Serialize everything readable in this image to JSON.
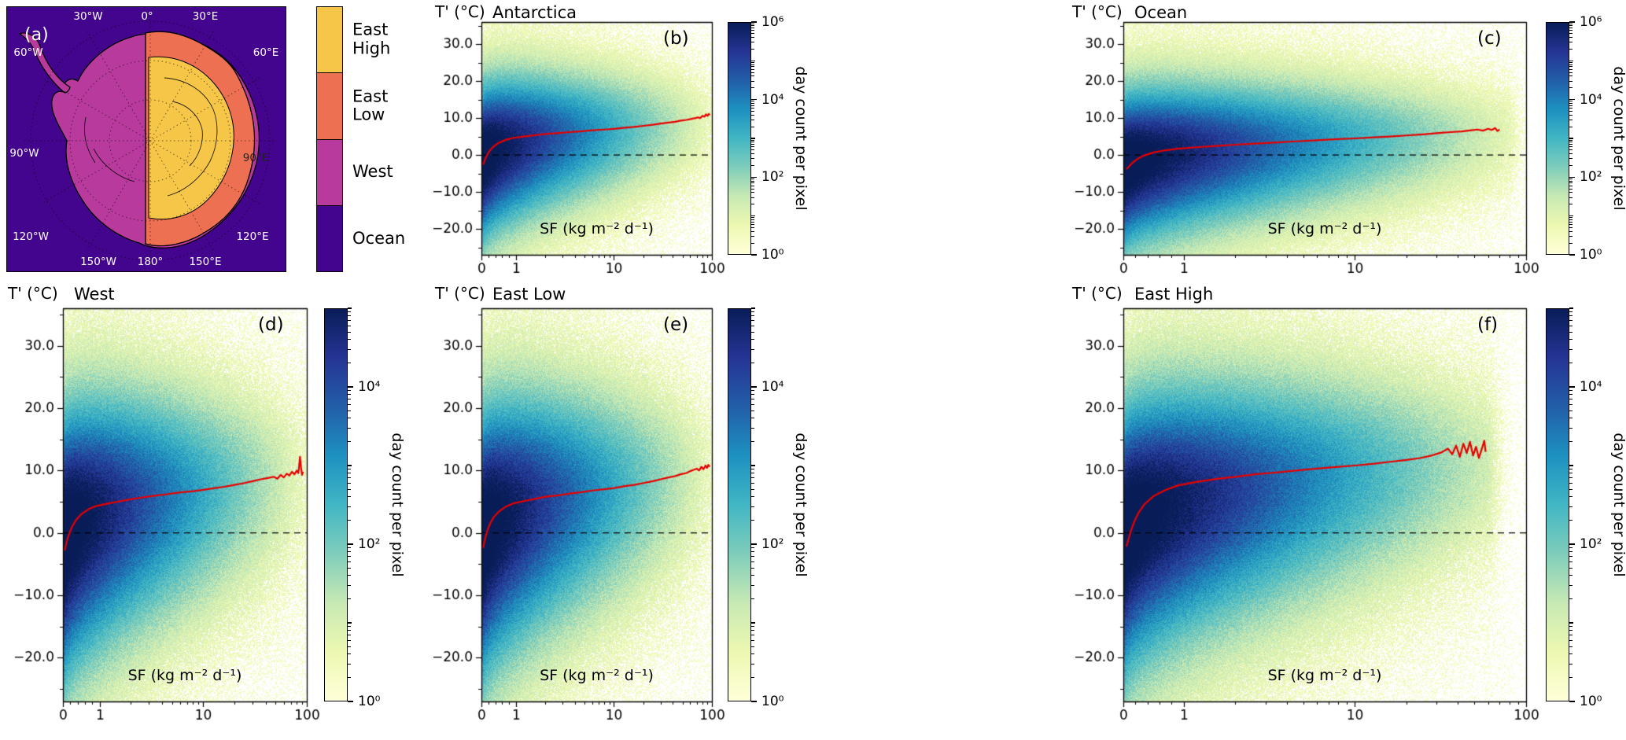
{
  "shared": {
    "y_axis_title": "T' (°C)",
    "x_axis_title": "SF (kg m⁻² d⁻¹)",
    "colorbar_label": "day count per pixel",
    "red_line_color": "#e80000"
  },
  "axes": {
    "x_scale": "symlog",
    "x_linthresh": 1,
    "x_linthresh_frac": 0.15,
    "x_ticks": [
      0,
      1,
      10,
      100
    ],
    "x_tick_labels": [
      "0",
      "1",
      "10",
      "100"
    ],
    "x_minor": [
      0.2,
      0.4,
      0.6,
      0.8,
      2,
      3,
      4,
      5,
      6,
      7,
      8,
      9,
      20,
      30,
      40,
      50,
      60,
      70,
      80,
      90
    ],
    "y_ticks": [
      30,
      20,
      10,
      0,
      -10,
      -20
    ],
    "y_tick_labels": [
      "30.0",
      "20.0",
      "10.0",
      "0.0",
      "−10.0",
      "−20.0"
    ],
    "y_minor": [
      35,
      25,
      15,
      5,
      -5,
      -15,
      -25
    ],
    "ylim": [
      -27,
      36
    ],
    "zero_line_y": 0
  },
  "colormap": [
    [
      0.0,
      "#ffffd9"
    ],
    [
      0.125,
      "#edf8b1"
    ],
    [
      0.25,
      "#c7e9b4"
    ],
    [
      0.375,
      "#7fcdbb"
    ],
    [
      0.5,
      "#41b6c4"
    ],
    [
      0.625,
      "#1d91c0"
    ],
    [
      0.75,
      "#225ea8"
    ],
    [
      0.875,
      "#253494"
    ],
    [
      1.0,
      "#081d58"
    ]
  ],
  "map_panel": {
    "panel_label": "(a)",
    "colors": {
      "ocean": "#43048e",
      "west": "#b83a9c",
      "east_low": "#ee7052",
      "east_high": "#f6c648"
    },
    "legend": [
      {
        "label": "East\n High",
        "color": "#f6c648"
      },
      {
        "label": "East\n Low",
        "color": "#ee7052"
      },
      {
        "label": "West",
        "color": "#b83a9c"
      },
      {
        "label": "Ocean",
        "color": "#43048e"
      }
    ],
    "lon_labels": [
      "0°",
      "30°E",
      "30°W",
      "60°E",
      "60°W",
      "90°E",
      "90°W",
      "120°E",
      "120°W",
      "150°E",
      "150°W",
      "180°"
    ]
  },
  "chart_data": [
    {
      "id": "panel-b",
      "type": "heatmap",
      "panel_label": "(b)",
      "title": "Antarctica",
      "xlabel": "SF (kg m⁻² d⁻¹)",
      "ylabel": "T' (°C)",
      "density": {
        "max_exp": 6,
        "c0": -2.5,
        "c1": 9,
        "s0": 13,
        "s1": 9,
        "extent": 1.0,
        "pow": 0.35
      },
      "colorbar": {
        "max_exp": 6,
        "ticks": [
          [
            "10⁶",
            6
          ],
          [
            "10⁴",
            4
          ],
          [
            "10²",
            2
          ],
          [
            "10⁰",
            0
          ]
        ]
      },
      "red_line": [
        [
          0.05,
          -2.6
        ],
        [
          0.08,
          -1.8
        ],
        [
          0.12,
          -0.8
        ],
        [
          0.18,
          0.3
        ],
        [
          0.25,
          1.3
        ],
        [
          0.35,
          2.3
        ],
        [
          0.5,
          3.3
        ],
        [
          0.7,
          4.1
        ],
        [
          0.9,
          4.6
        ],
        [
          1.2,
          5.0
        ],
        [
          1.6,
          5.4
        ],
        [
          2,
          5.7
        ],
        [
          2.6,
          5.9
        ],
        [
          3.5,
          6.2
        ],
        [
          4.5,
          6.4
        ],
        [
          6,
          6.7
        ],
        [
          8,
          6.9
        ],
        [
          10,
          7.1
        ],
        [
          13,
          7.4
        ],
        [
          16,
          7.6
        ],
        [
          20,
          7.9
        ],
        [
          25,
          8.2
        ],
        [
          30,
          8.5
        ],
        [
          36,
          8.8
        ],
        [
          42,
          9.0
        ],
        [
          48,
          9.3
        ],
        [
          55,
          9.5
        ],
        [
          62,
          9.8
        ],
        [
          68,
          10.0
        ],
        [
          72,
          10.2
        ],
        [
          76,
          10.0
        ],
        [
          80,
          10.6
        ],
        [
          84,
          10.4
        ],
        [
          87,
          11.0
        ],
        [
          90,
          10.6
        ],
        [
          93,
          11.1
        ],
        [
          95,
          10.8
        ]
      ]
    },
    {
      "id": "panel-c",
      "type": "heatmap",
      "panel_label": "(c)",
      "title": "Ocean",
      "xlabel": "SF (kg m⁻² d⁻¹)",
      "ylabel": "T' (°C)",
      "density": {
        "max_exp": 6,
        "c0": -3.5,
        "c1": 6,
        "s0": 13,
        "s1": 9,
        "extent": 0.95,
        "pow": 0.4
      },
      "colorbar": {
        "max_exp": 6,
        "ticks": [
          [
            "10⁶",
            6
          ],
          [
            "10⁴",
            4
          ],
          [
            "10²",
            2
          ],
          [
            "10⁰",
            0
          ]
        ]
      },
      "red_line": [
        [
          0.05,
          -3.8
        ],
        [
          0.08,
          -3.4
        ],
        [
          0.12,
          -2.6
        ],
        [
          0.18,
          -1.7
        ],
        [
          0.25,
          -0.9
        ],
        [
          0.35,
          -0.1
        ],
        [
          0.5,
          0.7
        ],
        [
          0.7,
          1.3
        ],
        [
          0.9,
          1.7
        ],
        [
          1.2,
          2.1
        ],
        [
          1.6,
          2.5
        ],
        [
          2,
          2.8
        ],
        [
          2.6,
          3.1
        ],
        [
          3.5,
          3.4
        ],
        [
          4.5,
          3.7
        ],
        [
          6,
          4.0
        ],
        [
          8,
          4.3
        ],
        [
          10,
          4.5
        ],
        [
          13,
          4.8
        ],
        [
          16,
          5.0
        ],
        [
          20,
          5.3
        ],
        [
          25,
          5.6
        ],
        [
          30,
          5.9
        ],
        [
          36,
          6.2
        ],
        [
          42,
          6.4
        ],
        [
          48,
          6.7
        ],
        [
          52,
          6.9
        ],
        [
          56,
          6.6
        ],
        [
          60,
          7.1
        ],
        [
          63,
          6.8
        ],
        [
          66,
          7.3
        ],
        [
          68,
          6.5
        ],
        [
          70,
          6.9
        ]
      ]
    },
    {
      "id": "panel-d",
      "type": "heatmap",
      "panel_label": "(d)",
      "title": "West",
      "xlabel": "SF (kg m⁻² d⁻¹)",
      "ylabel": "T' (°C)",
      "density": {
        "max_exp": 5,
        "c0": -2.5,
        "c1": 9,
        "s0": 13,
        "s1": 9,
        "extent": 1.0,
        "pow": 0.35
      },
      "colorbar": {
        "max_exp": 5,
        "ticks": [
          [
            "10⁴",
            4
          ],
          [
            "10²",
            2
          ],
          [
            "10⁰",
            0
          ]
        ]
      },
      "red_line": [
        [
          0.05,
          -2.8
        ],
        [
          0.08,
          -2.0
        ],
        [
          0.12,
          -1.0
        ],
        [
          0.18,
          0.0
        ],
        [
          0.25,
          1.0
        ],
        [
          0.35,
          2.0
        ],
        [
          0.5,
          3.0
        ],
        [
          0.7,
          3.8
        ],
        [
          0.9,
          4.3
        ],
        [
          1.2,
          4.7
        ],
        [
          1.6,
          5.1
        ],
        [
          2,
          5.4
        ],
        [
          2.6,
          5.7
        ],
        [
          3.5,
          6.0
        ],
        [
          4.5,
          6.2
        ],
        [
          6,
          6.5
        ],
        [
          8,
          6.7
        ],
        [
          10,
          6.9
        ],
        [
          13,
          7.2
        ],
        [
          16,
          7.4
        ],
        [
          20,
          7.7
        ],
        [
          25,
          8.0
        ],
        [
          30,
          8.3
        ],
        [
          36,
          8.6
        ],
        [
          42,
          8.8
        ],
        [
          48,
          9.0
        ],
        [
          52,
          8.7
        ],
        [
          56,
          9.3
        ],
        [
          60,
          8.9
        ],
        [
          64,
          9.5
        ],
        [
          68,
          9.2
        ],
        [
          72,
          9.8
        ],
        [
          76,
          9.4
        ],
        [
          80,
          10.0
        ],
        [
          83,
          9.6
        ],
        [
          86,
          12.2
        ],
        [
          88,
          10.5
        ],
        [
          90,
          9.3
        ],
        [
          92,
          9.8
        ]
      ]
    },
    {
      "id": "panel-e",
      "type": "heatmap",
      "panel_label": "(e)",
      "title": "East Low",
      "xlabel": "SF (kg m⁻² d⁻¹)",
      "ylabel": "T' (°C)",
      "density": {
        "max_exp": 5,
        "c0": -2.5,
        "c1": 9.5,
        "s0": 13,
        "s1": 9,
        "extent": 1.0,
        "pow": 0.35
      },
      "colorbar": {
        "max_exp": 5,
        "ticks": [
          [
            "10⁴",
            4
          ],
          [
            "10²",
            2
          ],
          [
            "10⁰",
            0
          ]
        ]
      },
      "red_line": [
        [
          0.05,
          -2.4
        ],
        [
          0.08,
          -1.6
        ],
        [
          0.12,
          -0.6
        ],
        [
          0.18,
          0.5
        ],
        [
          0.25,
          1.5
        ],
        [
          0.35,
          2.5
        ],
        [
          0.5,
          3.4
        ],
        [
          0.7,
          4.2
        ],
        [
          0.9,
          4.7
        ],
        [
          1.2,
          5.1
        ],
        [
          1.6,
          5.5
        ],
        [
          2,
          5.8
        ],
        [
          2.6,
          6.0
        ],
        [
          3.5,
          6.3
        ],
        [
          4.5,
          6.5
        ],
        [
          6,
          6.8
        ],
        [
          8,
          7.0
        ],
        [
          10,
          7.2
        ],
        [
          13,
          7.5
        ],
        [
          16,
          7.7
        ],
        [
          20,
          8.0
        ],
        [
          25,
          8.3
        ],
        [
          30,
          8.6
        ],
        [
          36,
          8.9
        ],
        [
          42,
          9.1
        ],
        [
          48,
          9.4
        ],
        [
          55,
          9.6
        ],
        [
          60,
          9.9
        ],
        [
          65,
          10.1
        ],
        [
          70,
          10.3
        ],
        [
          74,
          10.0
        ],
        [
          78,
          10.6
        ],
        [
          82,
          10.2
        ],
        [
          86,
          10.8
        ],
        [
          89,
          10.4
        ],
        [
          92,
          10.9
        ],
        [
          95,
          10.6
        ]
      ]
    },
    {
      "id": "panel-f",
      "type": "heatmap",
      "panel_label": "(f)",
      "title": "East High",
      "xlabel": "SF (kg m⁻² d⁻¹)",
      "ylabel": "T' (°C)",
      "density": {
        "max_exp": 5,
        "c0": -2,
        "c1": 12,
        "s0": 13,
        "s1": 9,
        "extent": 0.9,
        "pow": 0.35
      },
      "colorbar": {
        "max_exp": 5,
        "ticks": [
          [
            "10⁴",
            4
          ],
          [
            "10²",
            2
          ],
          [
            "10⁰",
            0
          ]
        ]
      },
      "red_line": [
        [
          0.05,
          -2.2
        ],
        [
          0.08,
          -1.2
        ],
        [
          0.12,
          0.2
        ],
        [
          0.18,
          1.8
        ],
        [
          0.25,
          3.2
        ],
        [
          0.35,
          4.6
        ],
        [
          0.5,
          5.9
        ],
        [
          0.7,
          6.9
        ],
        [
          0.9,
          7.6
        ],
        [
          1.2,
          8.2
        ],
        [
          1.6,
          8.7
        ],
        [
          2,
          9.0
        ],
        [
          2.6,
          9.4
        ],
        [
          3.5,
          9.7
        ],
        [
          4.5,
          10.0
        ],
        [
          6,
          10.3
        ],
        [
          8,
          10.6
        ],
        [
          10,
          10.8
        ],
        [
          13,
          11.1
        ],
        [
          16,
          11.4
        ],
        [
          20,
          11.7
        ],
        [
          24,
          12.0
        ],
        [
          28,
          12.4
        ],
        [
          32,
          12.9
        ],
        [
          35,
          13.5
        ],
        [
          37,
          12.6
        ],
        [
          39,
          14.0
        ],
        [
          41,
          12.2
        ],
        [
          43,
          14.3
        ],
        [
          45,
          12.8
        ],
        [
          47,
          14.6
        ],
        [
          49,
          12.4
        ],
        [
          51,
          13.8
        ],
        [
          53,
          12.0
        ],
        [
          55,
          13.4
        ],
        [
          57,
          14.8
        ],
        [
          58,
          13.0
        ]
      ]
    }
  ]
}
